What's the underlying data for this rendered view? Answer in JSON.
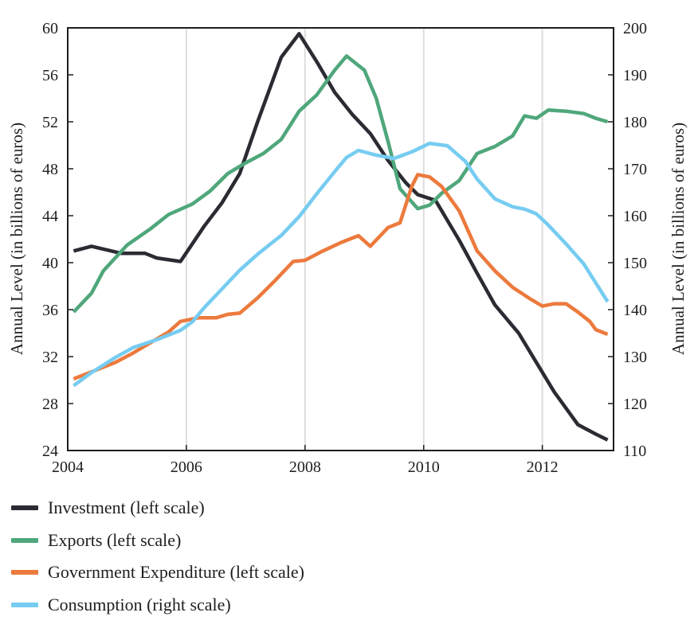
{
  "chart_data": {
    "type": "line",
    "xlim": [
      2004,
      2013.2
    ],
    "x_ticks": [
      "2004",
      "2006",
      "2008",
      "2010",
      "2012"
    ],
    "left_axis": {
      "label": "Annual Level (in billions of euros)",
      "ylim": [
        24,
        60
      ],
      "ticks": [
        "24",
        "28",
        "32",
        "36",
        "40",
        "44",
        "48",
        "52",
        "56",
        "60"
      ]
    },
    "right_axis": {
      "label": "Annual Level (in billions of euros)",
      "ylim": [
        110,
        200
      ],
      "ticks": [
        "110",
        "120",
        "130",
        "140",
        "150",
        "160",
        "170",
        "180",
        "190",
        "200"
      ]
    },
    "grid": "vertical",
    "legend_position": "bottom",
    "series": [
      {
        "name": "Investment (left scale)",
        "axis": "left",
        "color": "#2b2b33",
        "x": [
          2004.1,
          2004.4,
          2004.9,
          2005.3,
          2005.5,
          2005.9,
          2006.3,
          2006.6,
          2006.9,
          2007.2,
          2007.6,
          2007.9,
          2008.2,
          2008.5,
          2008.8,
          2009.1,
          2009.4,
          2009.7,
          2009.9,
          2010.2,
          2010.6,
          2010.9,
          2011.2,
          2011.6,
          2011.9,
          2012.2,
          2012.6,
          2012.9,
          2013.1
        ],
        "y": [
          41.0,
          41.4,
          40.8,
          40.8,
          40.4,
          40.1,
          43.1,
          45.1,
          47.6,
          52.0,
          57.5,
          59.5,
          57.1,
          54.5,
          52.6,
          51.0,
          48.7,
          46.8,
          45.8,
          45.3,
          41.9,
          39.1,
          36.4,
          34.0,
          31.5,
          29.0,
          26.2,
          25.4,
          24.9
        ]
      },
      {
        "name": "Exports (left scale)",
        "axis": "left",
        "color": "#4fa77b",
        "x": [
          2004.1,
          2004.4,
          2004.6,
          2005.0,
          2005.4,
          2005.7,
          2006.1,
          2006.4,
          2006.7,
          2007.0,
          2007.3,
          2007.6,
          2007.9,
          2008.2,
          2008.5,
          2008.7,
          2009.0,
          2009.2,
          2009.4,
          2009.6,
          2009.9,
          2010.1,
          2010.3,
          2010.6,
          2010.9,
          2011.2,
          2011.5,
          2011.7,
          2011.9,
          2012.1,
          2012.4,
          2012.7,
          2012.9,
          2013.1
        ],
        "y": [
          35.8,
          37.4,
          39.3,
          41.5,
          42.9,
          44.1,
          45.0,
          46.1,
          47.6,
          48.5,
          49.3,
          50.5,
          52.9,
          54.3,
          56.4,
          57.6,
          56.4,
          54.0,
          50.3,
          46.3,
          44.6,
          44.9,
          45.9,
          47.0,
          49.3,
          49.9,
          50.8,
          52.5,
          52.3,
          53.0,
          52.9,
          52.7,
          52.3,
          52.0
        ]
      },
      {
        "name": "Government Expenditure (left scale)",
        "axis": "left",
        "color": "#ec7a3d",
        "x": [
          2004.1,
          2004.4,
          2004.8,
          2005.1,
          2005.4,
          2005.7,
          2005.9,
          2006.2,
          2006.5,
          2006.7,
          2006.9,
          2007.2,
          2007.5,
          2007.8,
          2008.0,
          2008.3,
          2008.6,
          2008.9,
          2009.1,
          2009.4,
          2009.6,
          2009.8,
          2009.9,
          2010.1,
          2010.3,
          2010.6,
          2010.9,
          2011.2,
          2011.5,
          2011.8,
          2012.0,
          2012.2,
          2012.4,
          2012.6,
          2012.8,
          2012.9,
          2013.1
        ],
        "y": [
          30.1,
          30.7,
          31.5,
          32.3,
          33.2,
          34.1,
          35.0,
          35.3,
          35.3,
          35.6,
          35.7,
          37.0,
          38.5,
          40.1,
          40.2,
          41.0,
          41.7,
          42.3,
          41.4,
          43.0,
          43.4,
          46.5,
          47.5,
          47.3,
          46.5,
          44.4,
          41.0,
          39.3,
          37.9,
          36.9,
          36.3,
          36.5,
          36.5,
          35.8,
          35.0,
          34.3,
          33.9
        ]
      },
      {
        "name": "Consumption (right scale)",
        "axis": "right",
        "color": "#76ccf1",
        "x": [
          2004.1,
          2004.4,
          2004.8,
          2005.1,
          2005.5,
          2005.9,
          2006.1,
          2006.3,
          2006.6,
          2006.9,
          2007.2,
          2007.6,
          2007.9,
          2008.2,
          2008.5,
          2008.7,
          2008.9,
          2009.2,
          2009.5,
          2009.8,
          2010.1,
          2010.4,
          2010.7,
          2010.9,
          2011.2,
          2011.5,
          2011.7,
          2011.9,
          2012.1,
          2012.4,
          2012.7,
          2012.9,
          2013.1
        ],
        "y": [
          123.8,
          126.6,
          129.8,
          131.9,
          133.6,
          135.6,
          137.4,
          140.4,
          144.4,
          148.4,
          151.8,
          155.8,
          159.8,
          164.7,
          169.4,
          172.4,
          173.9,
          172.9,
          172.2,
          173.6,
          175.4,
          174.9,
          171.6,
          167.8,
          163.6,
          161.9,
          161.4,
          160.4,
          158.0,
          154.0,
          149.7,
          145.7,
          141.7
        ]
      }
    ]
  }
}
